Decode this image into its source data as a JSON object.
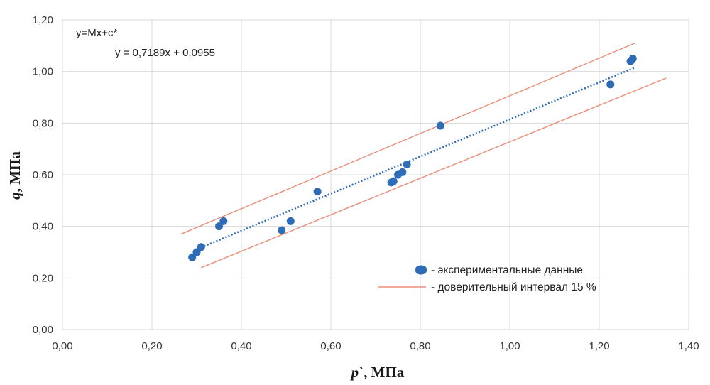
{
  "chart_data": {
    "type": "scatter",
    "xlabel_italic": "p",
    "xlabel_rest": "`, МПа",
    "ylabel_italic": "q",
    "ylabel_rest": ", МПа",
    "xlim": [
      0,
      1.4
    ],
    "ylim": [
      0,
      1.2
    ],
    "x_ticks": [
      0,
      0.2,
      0.4,
      0.6,
      0.8,
      1.0,
      1.2,
      1.4
    ],
    "x_tick_labels": [
      "0,00",
      "0,20",
      "0,40",
      "0,60",
      "0,80",
      "1,00",
      "1,20",
      "1,40"
    ],
    "y_ticks": [
      0,
      0.2,
      0.4,
      0.6,
      0.8,
      1.0,
      1.2
    ],
    "y_tick_labels": [
      "0,00",
      "0,20",
      "0,40",
      "0,60",
      "0,80",
      "1,00",
      "1,20"
    ],
    "grid": true,
    "model_label": "y=Mx+c*",
    "trendline_label": "y = 0,7189x + 0,0955",
    "trendline": {
      "slope": 0.7189,
      "intercept": 0.0955,
      "x_range": [
        0.31,
        1.28
      ]
    },
    "confidence_bounds": [
      {
        "x": [
          0.265,
          1.28
        ],
        "y": [
          0.37,
          1.11
        ]
      },
      {
        "x": [
          0.31,
          1.35
        ],
        "y": [
          0.24,
          0.975
        ]
      }
    ],
    "series": [
      {
        "name": "- экспериментальные данные",
        "x": [
          0.29,
          0.3,
          0.31,
          0.35,
          0.36,
          0.49,
          0.51,
          0.57,
          0.735,
          0.74,
          0.75,
          0.76,
          0.77,
          0.845,
          1.225,
          1.27,
          1.275
        ],
        "y": [
          0.28,
          0.3,
          0.32,
          0.4,
          0.42,
          0.385,
          0.42,
          0.535,
          0.57,
          0.575,
          0.6,
          0.61,
          0.64,
          0.79,
          0.95,
          1.04,
          1.05
        ]
      }
    ],
    "legend": {
      "position": "bottom-right",
      "items": [
        {
          "label": "- экспериментальные данные"
        },
        {
          "label": "- доверительный интервал 15 %"
        }
      ]
    },
    "colors": {
      "points": "#2e6cb5",
      "trendline": "#2e6cb5",
      "bounds": "#e8907c",
      "grid": "#d9d9d9"
    }
  }
}
